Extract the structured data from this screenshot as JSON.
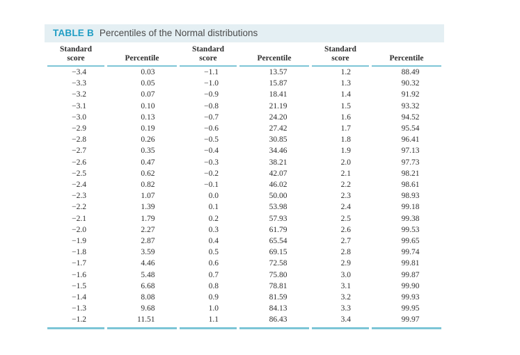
{
  "theme": {
    "accent_color": "#1f9dc4",
    "rule_color": "#7cc5d6",
    "title_strip_bg": "#e4eff3",
    "body_text_color": "#2e2e2e"
  },
  "table": {
    "title_tag": "TABLE B",
    "title_text": "Percentiles of the Normal distributions",
    "columns": [
      {
        "l1": "Standard",
        "l2": "score"
      },
      {
        "l1": "",
        "l2": "Percentile"
      },
      {
        "l1": "Standard",
        "l2": "score"
      },
      {
        "l1": "",
        "l2": "Percentile"
      },
      {
        "l1": "Standard",
        "l2": "score"
      },
      {
        "l1": "",
        "l2": "Percentile"
      }
    ],
    "rows": [
      [
        "−3.4",
        "0.03",
        "−1.1",
        "13.57",
        "1.2",
        "88.49"
      ],
      [
        "−3.3",
        "0.05",
        "−1.0",
        "15.87",
        "1.3",
        "90.32"
      ],
      [
        "−3.2",
        "0.07",
        "−0.9",
        "18.41",
        "1.4",
        "91.92"
      ],
      [
        "−3.1",
        "0.10",
        "−0.8",
        "21.19",
        "1.5",
        "93.32"
      ],
      [
        "−3.0",
        "0.13",
        "−0.7",
        "24.20",
        "1.6",
        "94.52"
      ],
      [
        "−2.9",
        "0.19",
        "−0.6",
        "27.42",
        "1.7",
        "95.54"
      ],
      [
        "−2.8",
        "0.26",
        "−0.5",
        "30.85",
        "1.8",
        "96.41"
      ],
      [
        "−2.7",
        "0.35",
        "−0.4",
        "34.46",
        "1.9",
        "97.13"
      ],
      [
        "−2.6",
        "0.47",
        "−0.3",
        "38.21",
        "2.0",
        "97.73"
      ],
      [
        "−2.5",
        "0.62",
        "−0.2",
        "42.07",
        "2.1",
        "98.21"
      ],
      [
        "−2.4",
        "0.82",
        "−0.1",
        "46.02",
        "2.2",
        "98.61"
      ],
      [
        "−2.3",
        "1.07",
        "0.0",
        "50.00",
        "2.3",
        "98.93"
      ],
      [
        "−2.2",
        "1.39",
        "0.1",
        "53.98",
        "2.4",
        "99.18"
      ],
      [
        "−2.1",
        "1.79",
        "0.2",
        "57.93",
        "2.5",
        "99.38"
      ],
      [
        "−2.0",
        "2.27",
        "0.3",
        "61.79",
        "2.6",
        "99.53"
      ],
      [
        "−1.9",
        "2.87",
        "0.4",
        "65.54",
        "2.7",
        "99.65"
      ],
      [
        "−1.8",
        "3.59",
        "0.5",
        "69.15",
        "2.8",
        "99.74"
      ],
      [
        "−1.7",
        "4.46",
        "0.6",
        "72.58",
        "2.9",
        "99.81"
      ],
      [
        "−1.6",
        "5.48",
        "0.7",
        "75.80",
        "3.0",
        "99.87"
      ],
      [
        "−1.5",
        "6.68",
        "0.8",
        "78.81",
        "3.1",
        "99.90"
      ],
      [
        "−1.4",
        "8.08",
        "0.9",
        "81.59",
        "3.2",
        "99.93"
      ],
      [
        "−1.3",
        "9.68",
        "1.0",
        "84.13",
        "3.3",
        "99.95"
      ],
      [
        "−1.2",
        "11.51",
        "1.1",
        "86.43",
        "3.4",
        "99.97"
      ]
    ]
  }
}
